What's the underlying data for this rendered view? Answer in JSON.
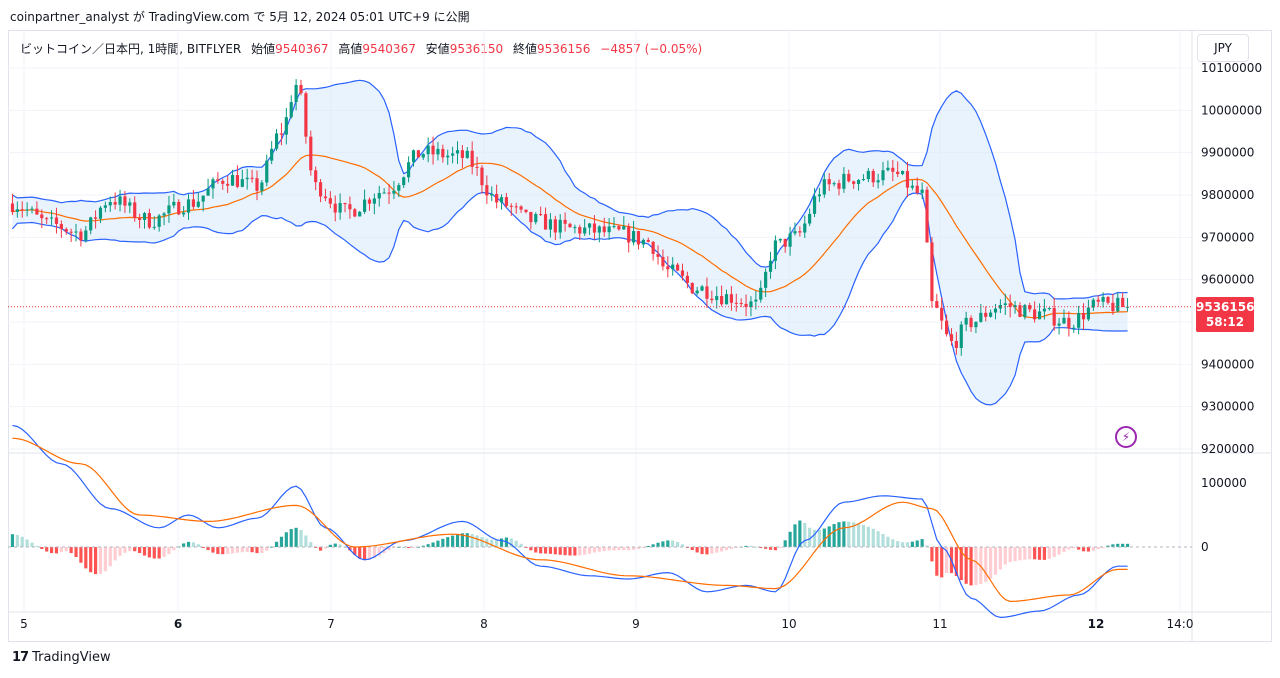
{
  "header": {
    "attribution": "coinpartner_analyst が TradingView.com で 5月 12, 2024 05:01 UTC+9 に公開"
  },
  "legend": {
    "symbol": "ビットコイン／日本円, 1時間, BITFLYER",
    "open_label": "始値",
    "open": "9540367",
    "high_label": "高値",
    "high": "9540367",
    "low_label": "安値",
    "low": "9536150",
    "close_label": "終値",
    "close": "9536156",
    "change": "−4857 (−0.05%)"
  },
  "currency_button": "JPY",
  "price_tag": {
    "price": "9536156",
    "countdown": "58:12"
  },
  "indicator_icon": "lightning-icon",
  "brand": {
    "logo": "17",
    "name": "TradingView"
  },
  "colors": {
    "up": "#089981",
    "down": "#f23645",
    "bb_outer": "#2962ff",
    "bb_basis": "#ff6d00",
    "bb_fill": "#d6e9fb",
    "macd": "#2962ff",
    "signal": "#ff6d00",
    "hist_up_strong": "#26a69a",
    "hist_up_weak": "#b2dfdb",
    "hist_down_strong": "#ff5252",
    "hist_down_weak": "#ffcdd2"
  },
  "chart_data": [
    {
      "type": "candlestick",
      "title": "ビットコイン／日本円, 1時間, BITFLYER",
      "x_ticks": [
        "5",
        "6",
        "7",
        "8",
        "9",
        "10",
        "11",
        "12",
        "14:0"
      ],
      "y_ticks": [
        9200000,
        9300000,
        9400000,
        9500000,
        9600000,
        9700000,
        9800000,
        9900000,
        10000000,
        10100000
      ],
      "ylim": [
        9200000,
        10100000
      ],
      "last_price": 9536156,
      "anchors": [
        {
          "x": 0,
          "price": 9780000
        },
        {
          "x": 8,
          "price": 9730000
        },
        {
          "x": 14,
          "price": 9710000
        },
        {
          "x": 20,
          "price": 9790000
        },
        {
          "x": 28,
          "price": 9740000
        },
        {
          "x": 36,
          "price": 9780000
        },
        {
          "x": 44,
          "price": 9840000
        },
        {
          "x": 50,
          "price": 9820000
        },
        {
          "x": 55,
          "price": 9950000
        },
        {
          "x": 58,
          "price": 10060000
        },
        {
          "x": 62,
          "price": 9820000
        },
        {
          "x": 68,
          "price": 9760000
        },
        {
          "x": 76,
          "price": 9810000
        },
        {
          "x": 84,
          "price": 9900000
        },
        {
          "x": 92,
          "price": 9890000
        },
        {
          "x": 100,
          "price": 9780000
        },
        {
          "x": 106,
          "price": 9740000
        },
        {
          "x": 114,
          "price": 9720000
        },
        {
          "x": 124,
          "price": 9710000
        },
        {
          "x": 130,
          "price": 9690000
        },
        {
          "x": 134,
          "price": 9620000
        },
        {
          "x": 140,
          "price": 9580000
        },
        {
          "x": 146,
          "price": 9560000
        },
        {
          "x": 152,
          "price": 9540000
        },
        {
          "x": 156,
          "price": 9680000
        },
        {
          "x": 160,
          "price": 9700000
        },
        {
          "x": 166,
          "price": 9820000
        },
        {
          "x": 172,
          "price": 9840000
        },
        {
          "x": 180,
          "price": 9850000
        },
        {
          "x": 186,
          "price": 9800000
        },
        {
          "x": 188,
          "price": 9540000
        },
        {
          "x": 192,
          "price": 9450000
        },
        {
          "x": 196,
          "price": 9500000
        },
        {
          "x": 202,
          "price": 9540000
        },
        {
          "x": 210,
          "price": 9520000
        },
        {
          "x": 216,
          "price": 9500000
        },
        {
          "x": 222,
          "price": 9540000
        },
        {
          "x": 228,
          "price": 9536156
        }
      ]
    },
    {
      "type": "macd",
      "y_ticks": [
        0,
        100000
      ],
      "ylim": [
        -120000,
        200000
      ],
      "macd_anchors": [
        {
          "x": 0,
          "v": 190000
        },
        {
          "x": 10,
          "v": 130000
        },
        {
          "x": 20,
          "v": 60000
        },
        {
          "x": 30,
          "v": 30000
        },
        {
          "x": 36,
          "v": 50000
        },
        {
          "x": 42,
          "v": 30000
        },
        {
          "x": 50,
          "v": 45000
        },
        {
          "x": 58,
          "v": 95000
        },
        {
          "x": 64,
          "v": 30000
        },
        {
          "x": 72,
          "v": -20000
        },
        {
          "x": 80,
          "v": 10000
        },
        {
          "x": 92,
          "v": 40000
        },
        {
          "x": 100,
          "v": 10000
        },
        {
          "x": 108,
          "v": -30000
        },
        {
          "x": 118,
          "v": -45000
        },
        {
          "x": 126,
          "v": -50000
        },
        {
          "x": 134,
          "v": -40000
        },
        {
          "x": 142,
          "v": -70000
        },
        {
          "x": 150,
          "v": -60000
        },
        {
          "x": 156,
          "v": -70000
        },
        {
          "x": 162,
          "v": 10000
        },
        {
          "x": 170,
          "v": 70000
        },
        {
          "x": 178,
          "v": 80000
        },
        {
          "x": 186,
          "v": 75000
        },
        {
          "x": 190,
          "v": 0
        },
        {
          "x": 196,
          "v": -80000
        },
        {
          "x": 202,
          "v": -110000
        },
        {
          "x": 210,
          "v": -100000
        },
        {
          "x": 218,
          "v": -75000
        },
        {
          "x": 226,
          "v": -30000
        }
      ],
      "signal_anchors": [
        {
          "x": 0,
          "v": 170000
        },
        {
          "x": 14,
          "v": 130000
        },
        {
          "x": 26,
          "v": 50000
        },
        {
          "x": 40,
          "v": 40000
        },
        {
          "x": 58,
          "v": 65000
        },
        {
          "x": 70,
          "v": 0
        },
        {
          "x": 90,
          "v": 20000
        },
        {
          "x": 108,
          "v": -20000
        },
        {
          "x": 126,
          "v": -45000
        },
        {
          "x": 146,
          "v": -60000
        },
        {
          "x": 156,
          "v": -65000
        },
        {
          "x": 170,
          "v": 30000
        },
        {
          "x": 182,
          "v": 70000
        },
        {
          "x": 188,
          "v": 60000
        },
        {
          "x": 196,
          "v": -20000
        },
        {
          "x": 204,
          "v": -85000
        },
        {
          "x": 216,
          "v": -75000
        },
        {
          "x": 226,
          "v": -35000
        }
      ]
    }
  ]
}
